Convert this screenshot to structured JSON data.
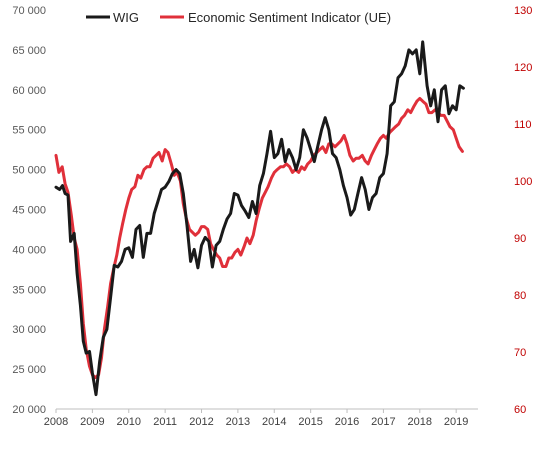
{
  "chart_data": {
    "type": "line",
    "title": "",
    "xlabel": "",
    "ylabel": "",
    "y2label": "",
    "xlim": [
      2008,
      2019.6
    ],
    "ylim": [
      20000,
      70000
    ],
    "y2lim": [
      60,
      130
    ],
    "x_ticks": [
      "2008",
      "2009",
      "2010",
      "2011",
      "2012",
      "2013",
      "2014",
      "2015",
      "2016",
      "2017",
      "2018",
      "2019"
    ],
    "y_ticks": [
      "20 000",
      "25 000",
      "30 000",
      "35 000",
      "40 000",
      "45 000",
      "50 000",
      "55 000",
      "60 000",
      "65 000",
      "70 000"
    ],
    "y2_ticks": [
      "60",
      "70",
      "80",
      "90",
      "100",
      "110",
      "120",
      "130"
    ],
    "grid": false,
    "legend_position": "top",
    "series": [
      {
        "name": "WIG",
        "axis": "left",
        "color": "#1a1a1a",
        "points": [
          [
            2008.0,
            47800
          ],
          [
            2008.1,
            47500
          ],
          [
            2008.18,
            48000
          ],
          [
            2008.25,
            47000
          ],
          [
            2008.33,
            46800
          ],
          [
            2008.4,
            41000
          ],
          [
            2008.5,
            42000
          ],
          [
            2008.58,
            37000
          ],
          [
            2008.67,
            33000
          ],
          [
            2008.75,
            28500
          ],
          [
            2008.83,
            27000
          ],
          [
            2008.92,
            27200
          ],
          [
            2009.0,
            24500
          ],
          [
            2009.1,
            21800
          ],
          [
            2009.2,
            26000
          ],
          [
            2009.3,
            29000
          ],
          [
            2009.4,
            30000
          ],
          [
            2009.5,
            34000
          ],
          [
            2009.6,
            38000
          ],
          [
            2009.7,
            37800
          ],
          [
            2009.8,
            38500
          ],
          [
            2009.9,
            40000
          ],
          [
            2010.0,
            40200
          ],
          [
            2010.1,
            39000
          ],
          [
            2010.2,
            42500
          ],
          [
            2010.3,
            43000
          ],
          [
            2010.4,
            39000
          ],
          [
            2010.5,
            42000
          ],
          [
            2010.6,
            42000
          ],
          [
            2010.7,
            44500
          ],
          [
            2010.8,
            46000
          ],
          [
            2010.9,
            47500
          ],
          [
            2011.0,
            47800
          ],
          [
            2011.1,
            48500
          ],
          [
            2011.2,
            49500
          ],
          [
            2011.3,
            50000
          ],
          [
            2011.4,
            49500
          ],
          [
            2011.5,
            47000
          ],
          [
            2011.6,
            43000
          ],
          [
            2011.7,
            38500
          ],
          [
            2011.8,
            40000
          ],
          [
            2011.9,
            37700
          ],
          [
            2012.0,
            40500
          ],
          [
            2012.1,
            41500
          ],
          [
            2012.2,
            41000
          ],
          [
            2012.3,
            37800
          ],
          [
            2012.4,
            40500
          ],
          [
            2012.5,
            41000
          ],
          [
            2012.6,
            42500
          ],
          [
            2012.7,
            43800
          ],
          [
            2012.8,
            44500
          ],
          [
            2012.9,
            47000
          ],
          [
            2013.0,
            46800
          ],
          [
            2013.1,
            45500
          ],
          [
            2013.2,
            44800
          ],
          [
            2013.3,
            44000
          ],
          [
            2013.4,
            46000
          ],
          [
            2013.5,
            44500
          ],
          [
            2013.6,
            48000
          ],
          [
            2013.7,
            49500
          ],
          [
            2013.8,
            52000
          ],
          [
            2013.9,
            54800
          ],
          [
            2014.0,
            51500
          ],
          [
            2014.1,
            52000
          ],
          [
            2014.2,
            53800
          ],
          [
            2014.3,
            51000
          ],
          [
            2014.4,
            52500
          ],
          [
            2014.5,
            51500
          ],
          [
            2014.6,
            50000
          ],
          [
            2014.7,
            51500
          ],
          [
            2014.8,
            55000
          ],
          [
            2014.9,
            54000
          ],
          [
            2015.0,
            52500
          ],
          [
            2015.1,
            51000
          ],
          [
            2015.2,
            53000
          ],
          [
            2015.3,
            55000
          ],
          [
            2015.4,
            56500
          ],
          [
            2015.5,
            55000
          ],
          [
            2015.6,
            52000
          ],
          [
            2015.7,
            51500
          ],
          [
            2015.8,
            50000
          ],
          [
            2015.9,
            48000
          ],
          [
            2016.0,
            46500
          ],
          [
            2016.1,
            44300
          ],
          [
            2016.2,
            45000
          ],
          [
            2016.3,
            47000
          ],
          [
            2016.4,
            49000
          ],
          [
            2016.5,
            47500
          ],
          [
            2016.6,
            45000
          ],
          [
            2016.7,
            46500
          ],
          [
            2016.8,
            47000
          ],
          [
            2016.9,
            49000
          ],
          [
            2017.0,
            49500
          ],
          [
            2017.1,
            52000
          ],
          [
            2017.2,
            58000
          ],
          [
            2017.3,
            58500
          ],
          [
            2017.4,
            61500
          ],
          [
            2017.5,
            62000
          ],
          [
            2017.6,
            63000
          ],
          [
            2017.7,
            65000
          ],
          [
            2017.8,
            64500
          ],
          [
            2017.9,
            65000
          ],
          [
            2018.0,
            62000
          ],
          [
            2018.08,
            66000
          ],
          [
            2018.2,
            60500
          ],
          [
            2018.3,
            58000
          ],
          [
            2018.4,
            60000
          ],
          [
            2018.5,
            56000
          ],
          [
            2018.6,
            60000
          ],
          [
            2018.7,
            60500
          ],
          [
            2018.8,
            57000
          ],
          [
            2018.9,
            58000
          ],
          [
            2019.0,
            57500
          ],
          [
            2019.1,
            60500
          ],
          [
            2019.2,
            60200
          ]
        ]
      },
      {
        "name": "Economic Sentiment Indicator (UE)",
        "axis": "right",
        "color": "#e0303a",
        "points": [
          [
            2008.0,
            104.5
          ],
          [
            2008.08,
            101.5
          ],
          [
            2008.17,
            102.5
          ],
          [
            2008.25,
            99.5
          ],
          [
            2008.33,
            98.0
          ],
          [
            2008.42,
            94.0
          ],
          [
            2008.5,
            90.0
          ],
          [
            2008.58,
            88.0
          ],
          [
            2008.67,
            82.0
          ],
          [
            2008.75,
            75.0
          ],
          [
            2008.83,
            70.5
          ],
          [
            2008.92,
            67.5
          ],
          [
            2009.0,
            66.0
          ],
          [
            2009.08,
            65.5
          ],
          [
            2009.17,
            66.0
          ],
          [
            2009.25,
            69.0
          ],
          [
            2009.33,
            74.0
          ],
          [
            2009.42,
            78.0
          ],
          [
            2009.5,
            82.0
          ],
          [
            2009.58,
            84.5
          ],
          [
            2009.67,
            87.0
          ],
          [
            2009.75,
            90.0
          ],
          [
            2009.83,
            92.5
          ],
          [
            2009.92,
            95.0
          ],
          [
            2010.0,
            97.0
          ],
          [
            2010.08,
            98.5
          ],
          [
            2010.17,
            99.0
          ],
          [
            2010.25,
            101.0
          ],
          [
            2010.33,
            100.5
          ],
          [
            2010.42,
            102.0
          ],
          [
            2010.5,
            102.5
          ],
          [
            2010.58,
            102.5
          ],
          [
            2010.67,
            104.0
          ],
          [
            2010.75,
            104.5
          ],
          [
            2010.83,
            105.0
          ],
          [
            2010.92,
            103.5
          ],
          [
            2011.0,
            105.5
          ],
          [
            2011.08,
            105.0
          ],
          [
            2011.17,
            103.0
          ],
          [
            2011.25,
            101.0
          ],
          [
            2011.33,
            101.5
          ],
          [
            2011.42,
            100.0
          ],
          [
            2011.5,
            96.0
          ],
          [
            2011.58,
            93.5
          ],
          [
            2011.67,
            91.5
          ],
          [
            2011.75,
            91.0
          ],
          [
            2011.83,
            90.5
          ],
          [
            2011.92,
            91.0
          ],
          [
            2012.0,
            92.0
          ],
          [
            2012.08,
            92.0
          ],
          [
            2012.17,
            91.5
          ],
          [
            2012.25,
            89.0
          ],
          [
            2012.33,
            88.0
          ],
          [
            2012.42,
            87.0
          ],
          [
            2012.5,
            86.5
          ],
          [
            2012.58,
            85.0
          ],
          [
            2012.67,
            85.0
          ],
          [
            2012.75,
            86.5
          ],
          [
            2012.83,
            86.5
          ],
          [
            2012.92,
            87.5
          ],
          [
            2013.0,
            88.0
          ],
          [
            2013.08,
            87.0
          ],
          [
            2013.17,
            88.5
          ],
          [
            2013.25,
            90.0
          ],
          [
            2013.33,
            89.0
          ],
          [
            2013.42,
            90.5
          ],
          [
            2013.5,
            93.0
          ],
          [
            2013.58,
            95.0
          ],
          [
            2013.67,
            97.0
          ],
          [
            2013.75,
            98.0
          ],
          [
            2013.83,
            99.0
          ],
          [
            2013.92,
            100.5
          ],
          [
            2014.0,
            101.5
          ],
          [
            2014.08,
            102.0
          ],
          [
            2014.17,
            102.5
          ],
          [
            2014.25,
            102.5
          ],
          [
            2014.33,
            103.0
          ],
          [
            2014.42,
            102.5
          ],
          [
            2014.5,
            101.5
          ],
          [
            2014.58,
            102.0
          ],
          [
            2014.67,
            101.5
          ],
          [
            2014.75,
            102.5
          ],
          [
            2014.83,
            102.0
          ],
          [
            2014.92,
            103.0
          ],
          [
            2015.0,
            103.5
          ],
          [
            2015.08,
            104.5
          ],
          [
            2015.17,
            105.0
          ],
          [
            2015.25,
            105.5
          ],
          [
            2015.33,
            106.0
          ],
          [
            2015.42,
            105.0
          ],
          [
            2015.5,
            106.5
          ],
          [
            2015.58,
            106.5
          ],
          [
            2015.67,
            106.0
          ],
          [
            2015.75,
            106.5
          ],
          [
            2015.83,
            107.0
          ],
          [
            2015.92,
            108.0
          ],
          [
            2016.0,
            106.5
          ],
          [
            2016.08,
            104.5
          ],
          [
            2016.17,
            103.5
          ],
          [
            2016.25,
            104.0
          ],
          [
            2016.33,
            104.0
          ],
          [
            2016.42,
            104.5
          ],
          [
            2016.5,
            103.5
          ],
          [
            2016.58,
            103.0
          ],
          [
            2016.67,
            104.5
          ],
          [
            2016.75,
            105.5
          ],
          [
            2016.83,
            106.5
          ],
          [
            2016.92,
            107.5
          ],
          [
            2017.0,
            108.0
          ],
          [
            2017.08,
            107.5
          ],
          [
            2017.17,
            108.5
          ],
          [
            2017.25,
            109.0
          ],
          [
            2017.33,
            109.5
          ],
          [
            2017.42,
            110.0
          ],
          [
            2017.5,
            111.0
          ],
          [
            2017.58,
            111.5
          ],
          [
            2017.67,
            112.5
          ],
          [
            2017.75,
            112.0
          ],
          [
            2017.83,
            113.0
          ],
          [
            2017.92,
            114.0
          ],
          [
            2018.0,
            114.5
          ],
          [
            2018.08,
            114.0
          ],
          [
            2018.17,
            113.5
          ],
          [
            2018.25,
            112.0
          ],
          [
            2018.33,
            112.0
          ],
          [
            2018.42,
            112.5
          ],
          [
            2018.5,
            112.0
          ],
          [
            2018.58,
            111.5
          ],
          [
            2018.67,
            111.5
          ],
          [
            2018.75,
            110.5
          ],
          [
            2018.83,
            109.5
          ],
          [
            2018.92,
            109.0
          ],
          [
            2019.0,
            107.5
          ],
          [
            2019.08,
            106.0
          ],
          [
            2019.17,
            105.2
          ]
        ]
      }
    ]
  }
}
